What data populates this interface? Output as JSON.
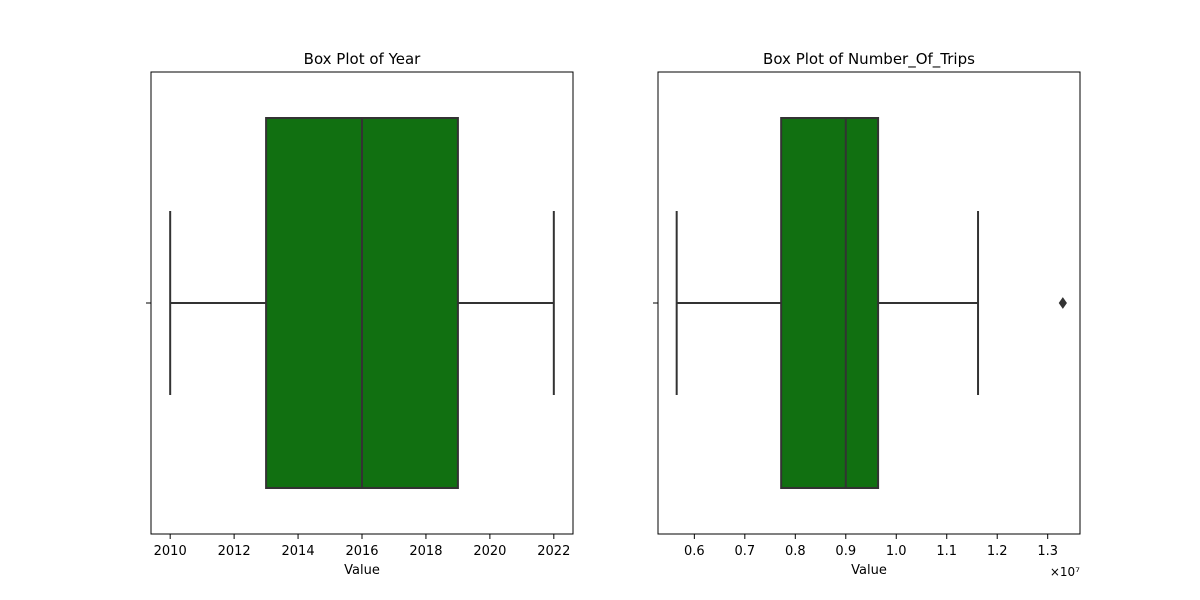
{
  "figure": {
    "background": "#ffffff"
  },
  "chart_data": [
    {
      "type": "box",
      "title": "Box Plot of Year",
      "xlabel": "Value",
      "ylabel": "",
      "orientation": "horizontal",
      "box_color": "#117011",
      "line_color": "#333333",
      "xlim": [
        2009.4,
        2022.6
      ],
      "xticks": [
        2010,
        2012,
        2014,
        2016,
        2018,
        2020,
        2022
      ],
      "xtick_labels": [
        "2010",
        "2012",
        "2014",
        "2016",
        "2018",
        "2020",
        "2022"
      ],
      "axis_multiplier_label": "",
      "grid": false,
      "stats": {
        "whisker_low": 2010,
        "q1": 2013,
        "median": 2016,
        "q3": 2019,
        "whisker_high": 2022
      },
      "outliers": []
    },
    {
      "type": "box",
      "title": "Box Plot of Number_Of_Trips",
      "xlabel": "Value",
      "ylabel": "",
      "orientation": "horizontal",
      "box_color": "#117011",
      "line_color": "#333333",
      "xlim": [
        5.28,
        13.64
      ],
      "xticks": [
        6,
        7,
        8,
        9,
        10,
        11,
        12,
        13
      ],
      "xtick_labels": [
        "0.6",
        "0.7",
        "0.8",
        "0.9",
        "1.0",
        "1.1",
        "1.2",
        "1.3"
      ],
      "axis_multiplier_label": "×10⁷",
      "grid": false,
      "stats": {
        "whisker_low": 5.65,
        "q1": 7.72,
        "median": 9.0,
        "q3": 9.64,
        "whisker_high": 11.62
      },
      "outliers": [
        13.3
      ]
    }
  ]
}
